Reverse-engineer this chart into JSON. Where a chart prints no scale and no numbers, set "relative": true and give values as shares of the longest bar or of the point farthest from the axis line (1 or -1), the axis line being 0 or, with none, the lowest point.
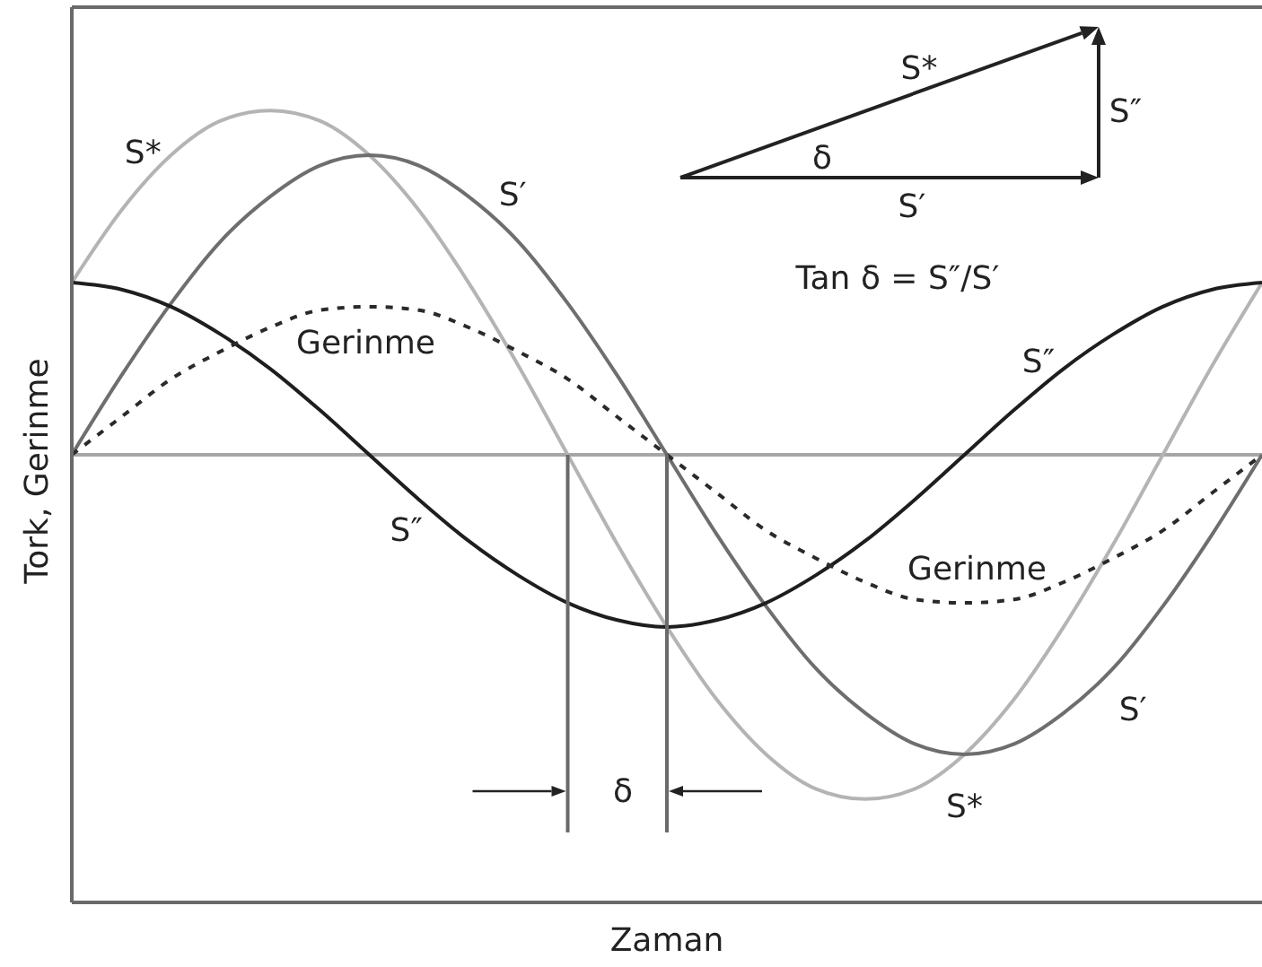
{
  "chart_data": {
    "type": "line",
    "xlabel": "Zaman",
    "ylabel": "Tork, Gerinme",
    "annotations": [
      "S*",
      "S″",
      "δ",
      "S′",
      "Tan δ = S″/S′",
      "δ"
    ],
    "categories": [
      null,
      null,
      null,
      null,
      null,
      null,
      null,
      null,
      null,
      null,
      null,
      null,
      null,
      null,
      null,
      null,
      null,
      null,
      null,
      null,
      null,
      null,
      null,
      null,
      null
    ],
    "relative": true,
    "marker": "none",
    "line_style": "solid",
    "series": [
      {
        "name": "S*",
        "color": "#b4b4b4",
        "values": [
          0.5,
          0.71,
          0.87,
          0.97,
          1,
          0.97,
          0.87,
          0.71,
          0.5,
          0.26,
          0,
          -0.26,
          -0.5,
          -0.71,
          -0.87,
          -0.97,
          -1,
          -0.97,
          -0.87,
          -0.71,
          -0.5,
          -0.26,
          0,
          0.26,
          0.5
        ]
      },
      {
        "name": "S′",
        "color": "#6e6e6e",
        "values": [
          0,
          0.23,
          0.44,
          0.62,
          0.75,
          0.84,
          0.87,
          0.84,
          0.75,
          0.62,
          0.44,
          0.23,
          0,
          -0.23,
          -0.44,
          -0.62,
          -0.75,
          -0.84,
          -0.87,
          -0.84,
          -0.75,
          -0.62,
          -0.44,
          -0.23,
          0
        ]
      },
      {
        "name": "S″",
        "color": "#1e1e1e",
        "values": [
          0.5,
          0.48,
          0.43,
          0.35,
          0.25,
          0.13,
          0,
          -0.13,
          -0.25,
          -0.35,
          -0.43,
          -0.48,
          -0.5,
          -0.48,
          -0.43,
          -0.35,
          -0.25,
          -0.13,
          0,
          0.13,
          0.25,
          0.35,
          0.43,
          0.48,
          0.5
        ]
      },
      {
        "name": "Gerinme",
        "color": "#2a2a2a",
        "line_style": "dashed",
        "values": [
          0,
          0.11,
          0.22,
          0.3,
          0.37,
          0.42,
          0.43,
          0.42,
          0.37,
          0.3,
          0.22,
          0.11,
          0,
          -0.11,
          -0.22,
          -0.3,
          -0.37,
          -0.42,
          -0.43,
          -0.42,
          -0.37,
          -0.3,
          -0.22,
          -0.11,
          0
        ]
      }
    ]
  }
}
